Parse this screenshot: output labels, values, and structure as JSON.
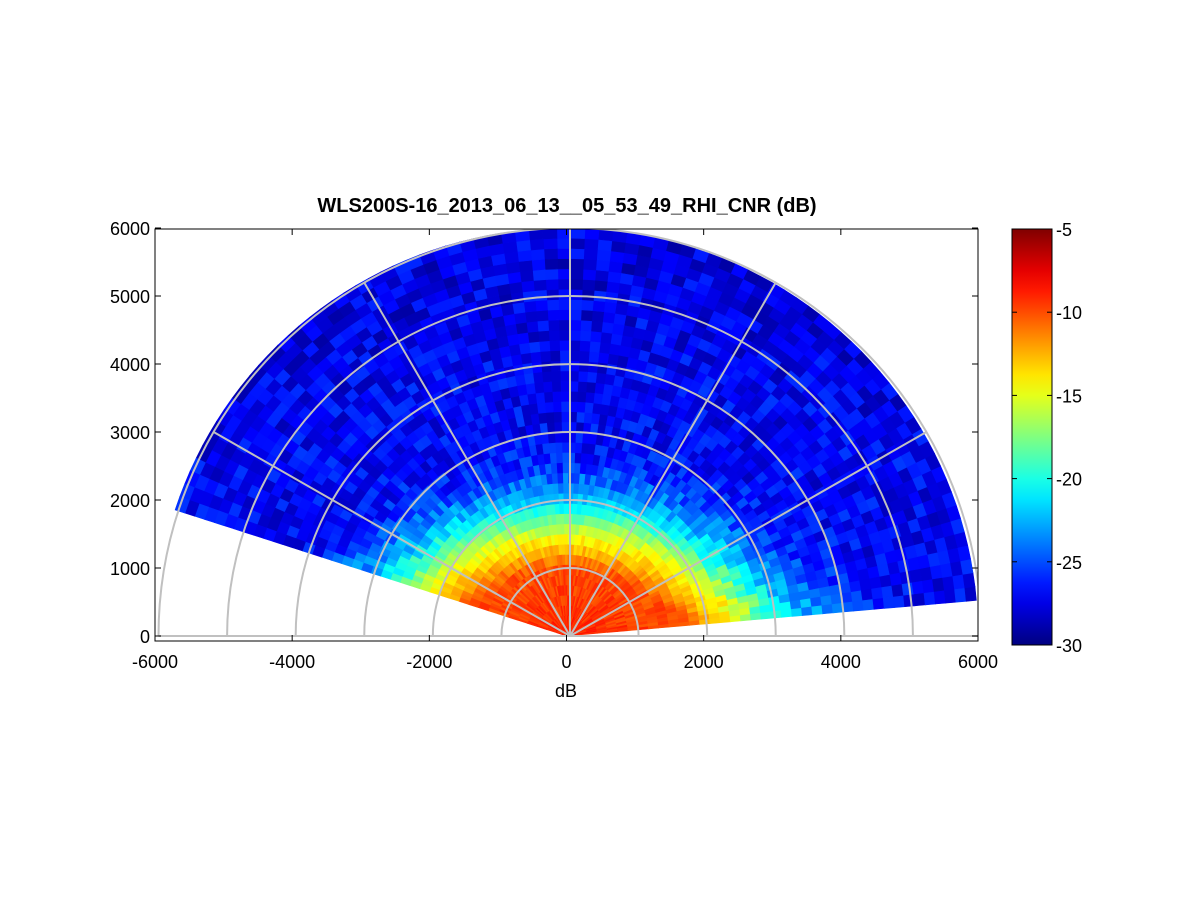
{
  "chart_data": {
    "type": "heatmap",
    "title": "WLS200S-16_2013_06_13__05_53_49_RHI_CNR (dB)",
    "xlabel": "dB",
    "ylabel": "",
    "xlim": [
      -6000,
      6000
    ],
    "ylim": [
      0,
      6000
    ],
    "x_ticks": [
      -6000,
      -4000,
      -2000,
      0,
      2000,
      4000,
      6000
    ],
    "y_ticks": [
      0,
      1000,
      2000,
      3000,
      4000,
      5000,
      6000
    ],
    "grid": "polar",
    "polar_grid": {
      "ring_radii": [
        1000,
        2000,
        3000,
        4000,
        5000,
        6000
      ],
      "spoke_angles_deg": [
        0,
        30,
        60,
        90,
        120,
        150,
        180
      ]
    },
    "scan_sector": {
      "max_range": 6000,
      "elevation_range_deg": [
        5,
        162
      ]
    },
    "colorbar": {
      "colormap": "jet",
      "range": [
        -30,
        -5
      ],
      "ticks": [
        -5,
        -10,
        -15,
        -20,
        -25,
        -30
      ]
    },
    "cnr_profile": {
      "description_range_m": [
        0,
        1000,
        1500,
        2000,
        2500,
        3000,
        4000,
        5000,
        6000
      ],
      "typical_cnr_db": [
        -9,
        -10,
        -15,
        -22,
        -26,
        -27,
        -27,
        -27.5,
        -27.5
      ]
    }
  }
}
